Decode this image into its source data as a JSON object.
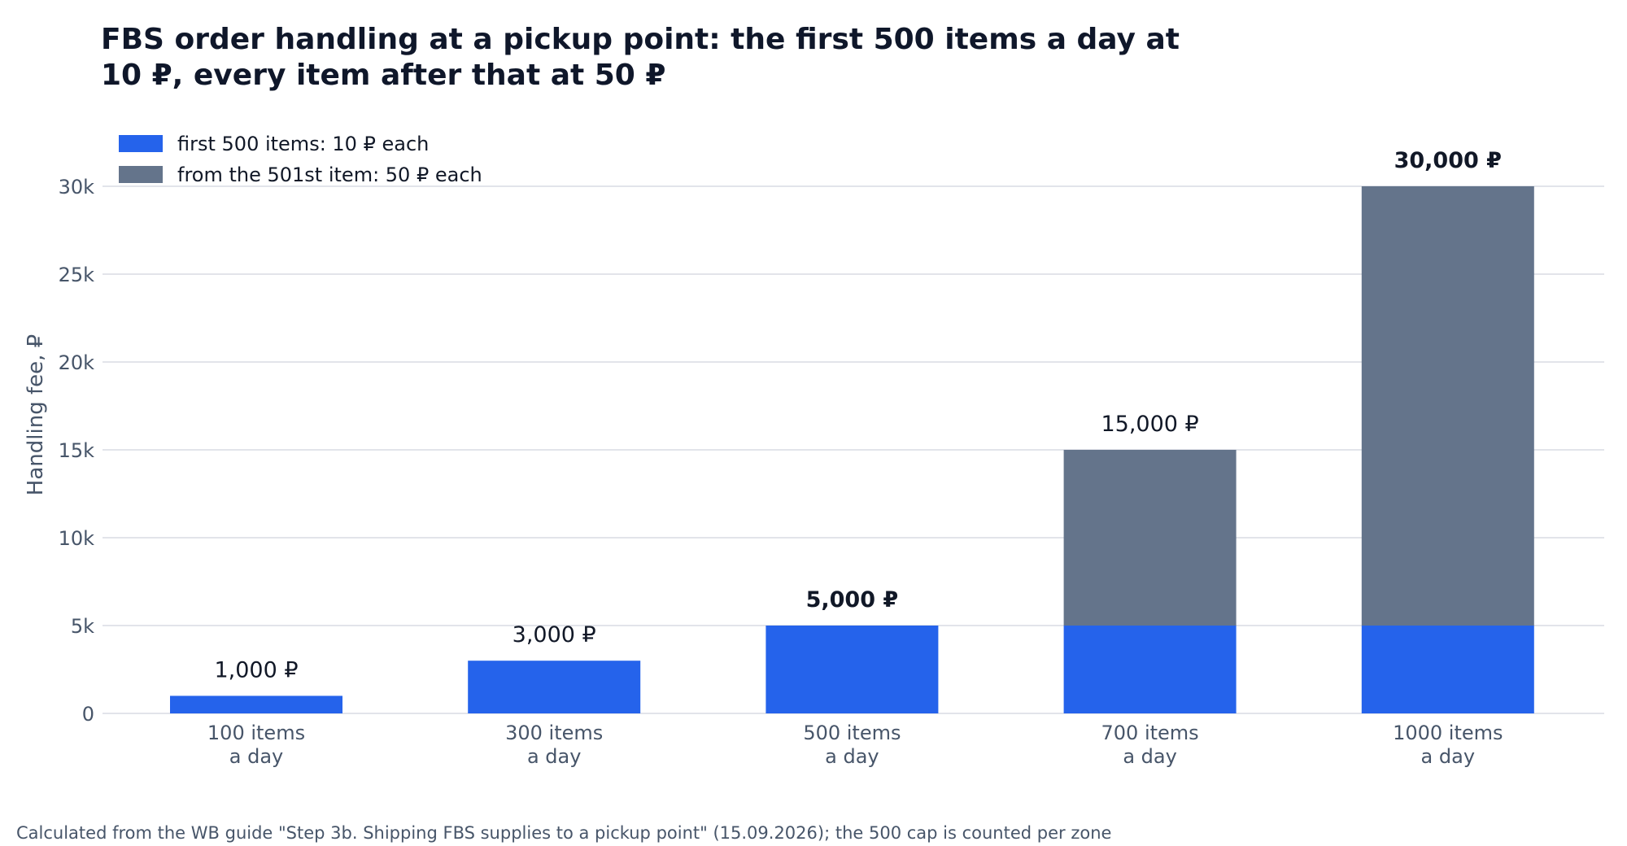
{
  "chart_data": {
    "type": "bar",
    "stacked": true,
    "title": "FBS order handling at a pickup point: the first 500 items a day at 10 ₽, every item after that at 50 ₽",
    "title_lines": [
      "FBS order handling at a pickup point: the first 500 items a day at",
      "10 ₽, every item after that at 50 ₽"
    ],
    "xlabel": "",
    "ylabel": "Handling fee, ₽",
    "ylim": [
      0,
      30000
    ],
    "y_ticks": [
      0,
      5000,
      10000,
      15000,
      20000,
      25000,
      30000
    ],
    "y_tick_labels": [
      "0",
      "5k",
      "10k",
      "15k",
      "20k",
      "25k",
      "30k"
    ],
    "categories": [
      "100 items a day",
      "300 items a day",
      "500 items a day",
      "700 items a day",
      "1000 items a day"
    ],
    "category_label_lines": [
      [
        "100 items",
        "a day"
      ],
      [
        "300 items",
        "a day"
      ],
      [
        "500 items",
        "a day"
      ],
      [
        "700 items",
        "a day"
      ],
      [
        "1000 items",
        "a day"
      ]
    ],
    "series": [
      {
        "name": "first 500 items: 10 ₽ each",
        "values": [
          1000,
          3000,
          5000,
          5000,
          5000
        ],
        "color": "#2563eb"
      },
      {
        "name": "from the 501st item: 50 ₽ each",
        "values": [
          0,
          0,
          0,
          10000,
          25000
        ],
        "color": "#64748b"
      }
    ],
    "totals": [
      1000,
      3000,
      5000,
      15000,
      30000
    ],
    "total_labels": [
      "1,000 ₽",
      "3,000 ₽",
      "5,000 ₽",
      "15,000 ₽",
      "30,000 ₽"
    ],
    "bold_total_labels": [
      false,
      false,
      true,
      false,
      true
    ],
    "grid": true,
    "legend_placement": "top-left"
  },
  "footnote": "Calculated from the WB guide \"Step 3b. Shipping FBS supplies to a pickup point\" (15.09.2026); the 500 cap is counted per zone"
}
